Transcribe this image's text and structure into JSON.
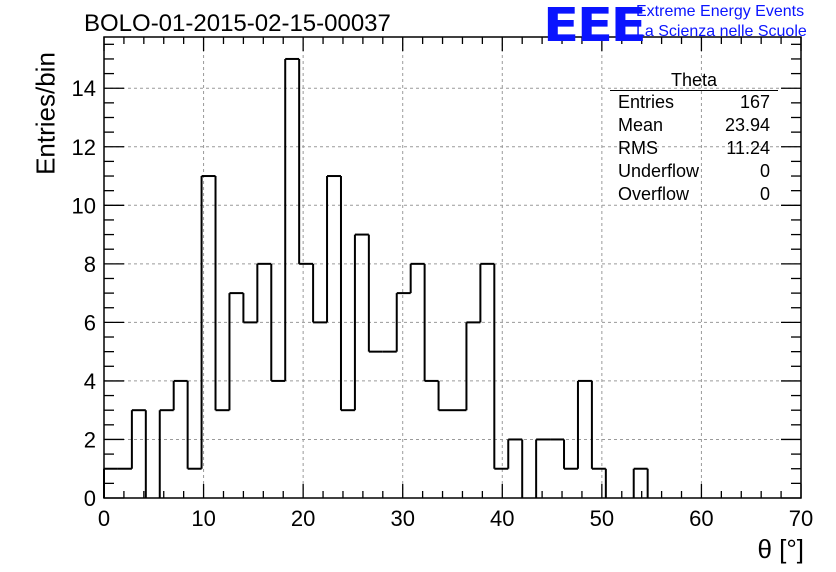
{
  "header": {
    "title": "BOLO-01-2015-02-15-00037"
  },
  "logo": {
    "mark": "EEE",
    "line1": "Extreme Energy Events",
    "line2": "La Scienza nelle Scuole",
    "color": "#0a14ff"
  },
  "stats": {
    "name": "Theta",
    "rows": [
      {
        "label": "Entries",
        "value": "167"
      },
      {
        "label": "Mean",
        "value": "23.94"
      },
      {
        "label": "RMS",
        "value": "11.24"
      },
      {
        "label": "Underflow",
        "value": "0"
      },
      {
        "label": "Overflow",
        "value": "0"
      }
    ]
  },
  "chart_data": {
    "type": "bar",
    "title": "BOLO-01-2015-02-15-00037",
    "xlabel": "θ [°]",
    "ylabel": "Entries/bin",
    "xlim": [
      0,
      70
    ],
    "ylim": [
      0,
      15.75
    ],
    "x_ticks": [
      0,
      10,
      20,
      30,
      40,
      50,
      60,
      70
    ],
    "y_ticks": [
      0,
      2,
      4,
      6,
      8,
      10,
      12,
      14
    ],
    "grid": true,
    "legend": "none",
    "bin_width": 1.4,
    "bin_edges_start": 0,
    "values": [
      1,
      1,
      3,
      0,
      3,
      4,
      1,
      11,
      3,
      7,
      6,
      8,
      4,
      15,
      8,
      6,
      11,
      3,
      9,
      5,
      5,
      7,
      8,
      4,
      3,
      3,
      6,
      8,
      1,
      2,
      0,
      2,
      2,
      1,
      4,
      1,
      0,
      0,
      1,
      0,
      0,
      0,
      0,
      0,
      0,
      0,
      0,
      0,
      0,
      0
    ]
  }
}
